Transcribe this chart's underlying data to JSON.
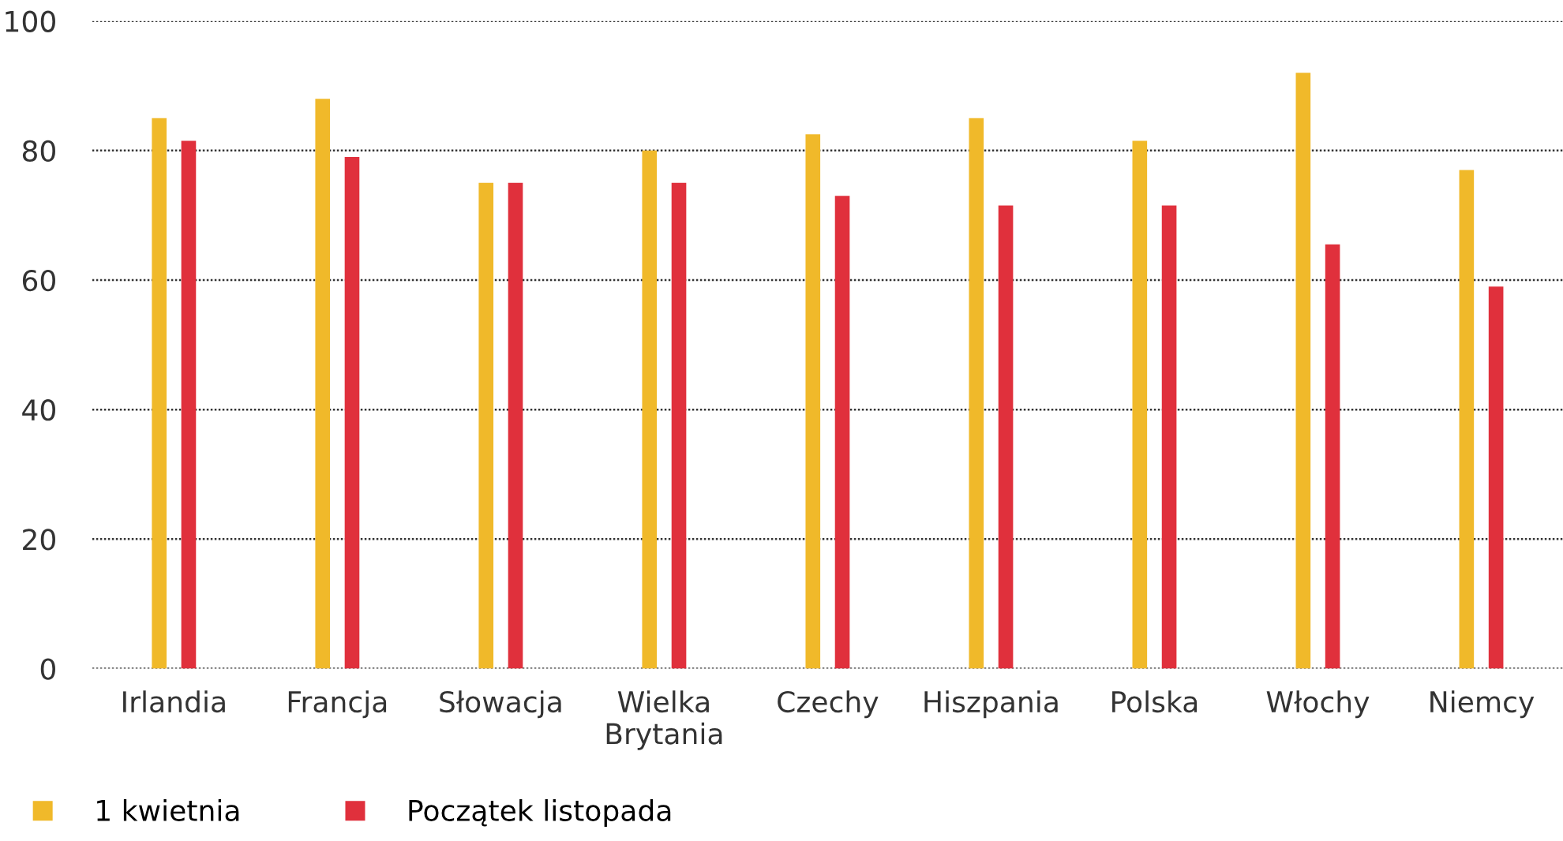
{
  "chart_data": {
    "type": "bar",
    "categories": [
      "Irlandia",
      "Francja",
      "Słowacja",
      "Wielka Brytania",
      "Czechy",
      "Hiszpania",
      "Polska",
      "Włochy",
      "Niemcy"
    ],
    "series": [
      {
        "name": "1 kwietnia",
        "color": "#f0b92a",
        "values": [
          85,
          88,
          75,
          80,
          82.5,
          85,
          81.5,
          92,
          77
        ]
      },
      {
        "name": "Początek listopada",
        "color": "#e0303c",
        "values": [
          81.5,
          79,
          75,
          75,
          73,
          71.5,
          71.5,
          65.5,
          59
        ]
      }
    ],
    "ylim": [
      0,
      100
    ],
    "yticks": [
      0,
      20,
      40,
      60,
      80,
      100
    ],
    "grid": "y",
    "legend": "bottom left"
  }
}
